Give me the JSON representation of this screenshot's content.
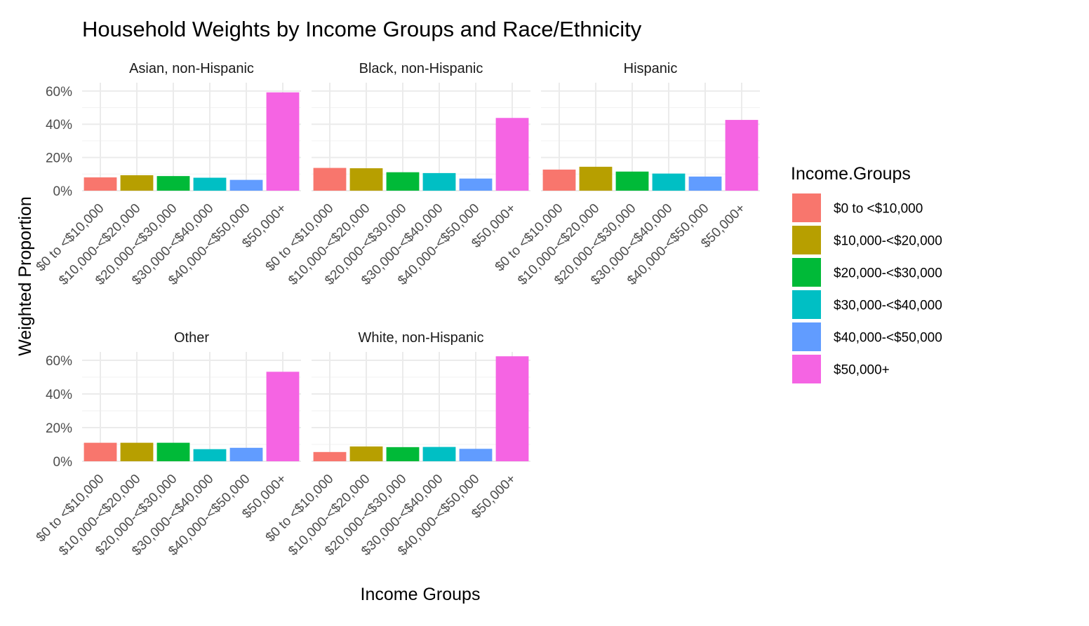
{
  "chart_data": {
    "type": "bar",
    "title": "Household Weights by Income Groups and Race/Ethnicity",
    "xlabel": "Income Groups",
    "ylabel": "Weighted Proportion",
    "ylim": [
      0,
      0.65
    ],
    "y_ticks": [
      0,
      0.2,
      0.4,
      0.6
    ],
    "y_tick_labels": [
      "0%",
      "20%",
      "40%",
      "60%"
    ],
    "grid": true,
    "legend_position": "right",
    "legend_title": "Income.Groups",
    "categories": [
      "$0 to <$10,000",
      "$10,000-<$20,000",
      "$20,000-<$30,000",
      "$30,000-<$40,000",
      "$40,000-<$50,000",
      "$50,000+"
    ],
    "colors": [
      "#F8766D",
      "#B79F00",
      "#00BA38",
      "#00BFC4",
      "#619CFF",
      "#F564E3"
    ],
    "facets": [
      {
        "name": "Asian, non-Hispanic",
        "values": [
          0.08,
          0.093,
          0.088,
          0.078,
          0.065,
          0.592
        ]
      },
      {
        "name": "Black, non-Hispanic",
        "values": [
          0.137,
          0.135,
          0.111,
          0.106,
          0.073,
          0.438
        ]
      },
      {
        "name": "Hispanic",
        "values": [
          0.127,
          0.144,
          0.115,
          0.103,
          0.085,
          0.426
        ]
      },
      {
        "name": "Other",
        "values": [
          0.11,
          0.11,
          0.11,
          0.072,
          0.08,
          0.532
        ]
      },
      {
        "name": "White, non-Hispanic",
        "values": [
          0.055,
          0.088,
          0.084,
          0.085,
          0.074,
          0.624
        ]
      }
    ]
  }
}
